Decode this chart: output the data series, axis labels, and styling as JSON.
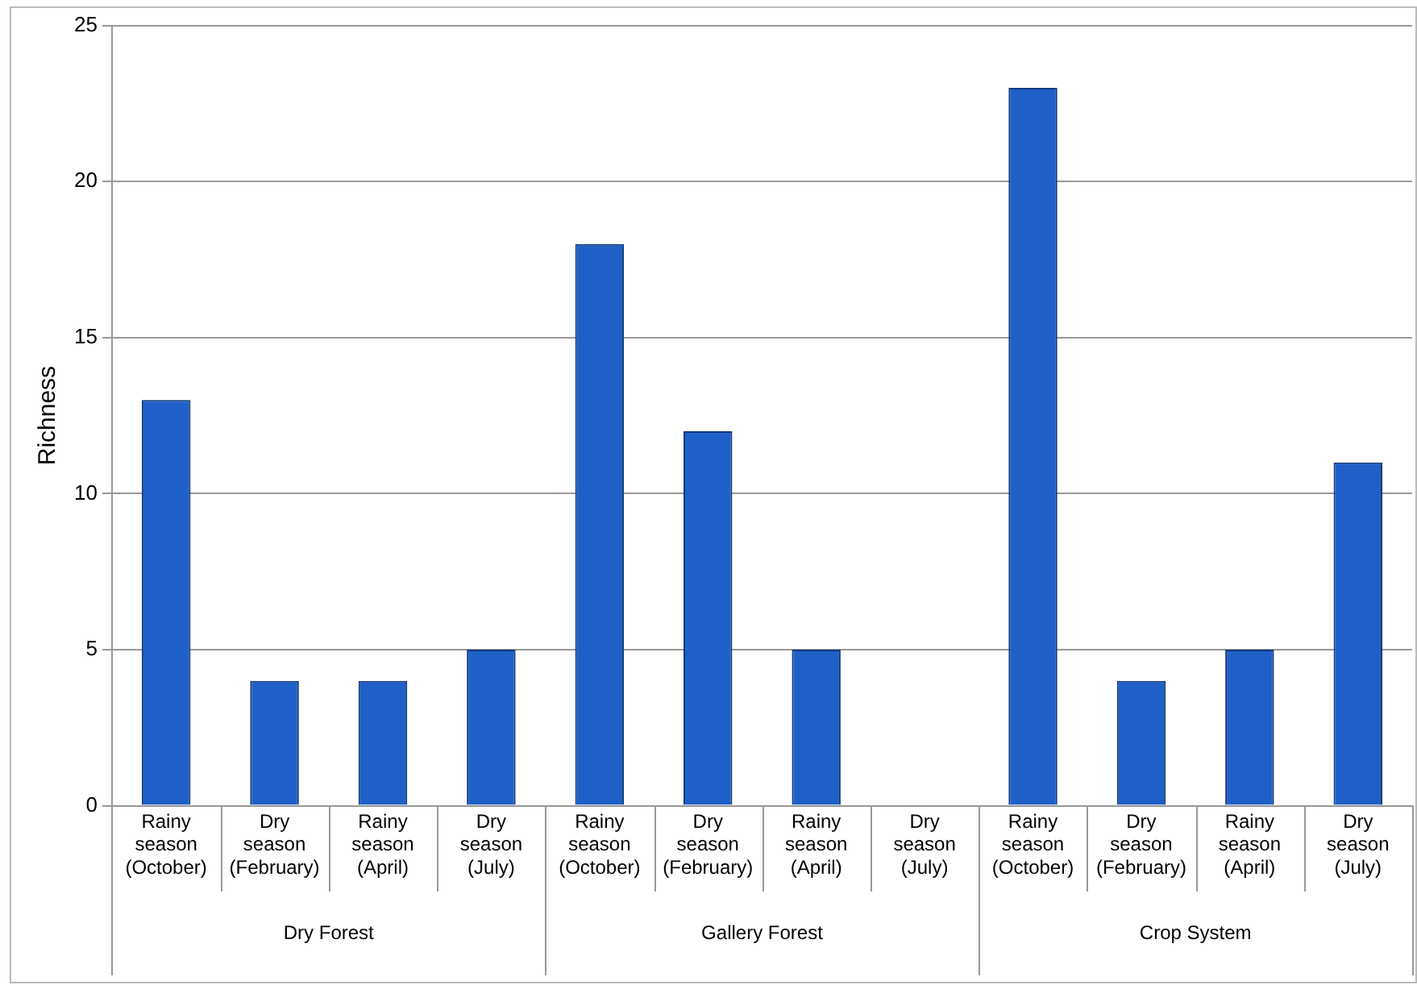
{
  "chart_data": {
    "type": "bar",
    "ylabel": "Richness",
    "categories": [
      "Rainy season (October)",
      "Dry season (February)",
      "Rainy season (April)",
      "Dry season (July)",
      "Rainy season (October)",
      "Dry season (February)",
      "Rainy season (April)",
      "Dry season (July)",
      "Rainy season (October)",
      "Dry season (February)",
      "Rainy season (April)",
      "Dry season (July)"
    ],
    "values": [
      13,
      4,
      4,
      5,
      18,
      12,
      5,
      0,
      23,
      4,
      5,
      11
    ],
    "color": "#1f5fc8",
    "annotations": [
      "Dry Forest",
      "Gallery Forest",
      "Crop System"
    ],
    "ylim": [
      0,
      25
    ],
    "yticks": [
      0,
      5,
      10,
      15,
      20,
      25
    ],
    "grid": "y",
    "legend": false
  }
}
